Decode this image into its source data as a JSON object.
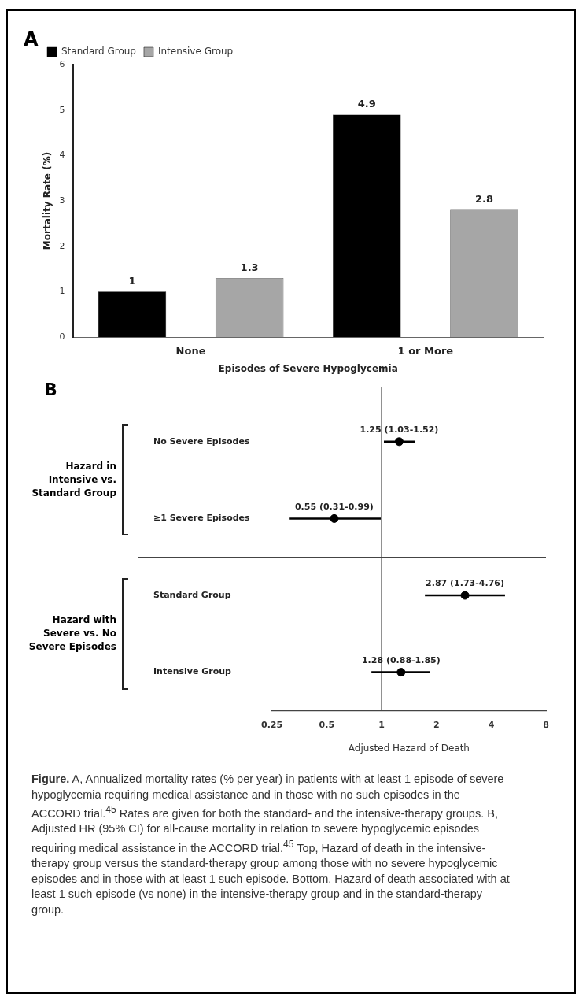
{
  "chart_data": [
    {
      "type": "bar",
      "categories": [
        "None",
        "1 or More"
      ],
      "xlabel": "Episodes of Severe Hypoglycemia",
      "ylabel": "Mortality Rate (%)",
      "series": [
        {
          "name": "Standard Group",
          "color": "#000000",
          "values": [
            1,
            4.9
          ]
        },
        {
          "name": "Intensive Group",
          "color": "#a6a6a6",
          "values": [
            1.3,
            2.8
          ]
        }
      ],
      "ylim": [
        0,
        6
      ],
      "yticks": [
        0,
        1,
        2,
        3,
        4,
        5,
        6
      ],
      "data_labels": true,
      "legend": "top left",
      "grid": false,
      "annotations": [
        "A"
      ]
    },
    {
      "type": "scatter",
      "orientation": "horizontal",
      "categories": [
        "No Severe Episodes",
        "≥1 Severe Episodes",
        "Standard Group",
        "Intensive Group"
      ],
      "values": [
        1.25,
        0.55,
        2.87,
        1.28
      ],
      "errors": [
        [
          1.03,
          1.52
        ],
        [
          0.31,
          0.99
        ],
        [
          1.73,
          4.76
        ],
        [
          0.88,
          1.85
        ]
      ],
      "value_labels": [
        "1.25 (1.03-1.52)",
        "0.55 (0.31-0.99)",
        "2.87 (1.73-4.76)",
        "1.28 (0.88-1.85)"
      ],
      "color": "#000000",
      "marker": "circle",
      "log": "x",
      "xlim": [
        0.25,
        8
      ],
      "xticks": [
        0.25,
        0.5,
        1,
        2,
        4,
        8
      ],
      "xlabel": "Adjusted Hazard of Death",
      "grid": false,
      "ref_lines": [
        {
          "axis": "x",
          "value": 1,
          "label": null
        }
      ],
      "annotations": [
        "B",
        "Hazard in Intensive vs. Standard Group",
        "Hazard with Severe vs. No Severe Episodes",
        "Figure.",
        " A, Annualized mortality rates (% per year) in patients with at least 1 episode of severe hypoglycemia requiring medical assistance and in those with no such episodes in the ACCORD trial.$^{45}$ Rates are given for both the standard- and the intensive-therapy groups. B, Adjusted HR (95% CI) for all-cause mortality in relation to severe hypoglycemic episodes requiring medical assistance in the ACCORD trial.$^{45}$ Top, Hazard of death in the intensive-therapy group versus the standard-therapy group among those with no severe hypoglycemic episodes and in those with at least 1 such episode. Bottom, Hazard of death associated with at least 1 such episode (vs none) in the intensive-therapy group and in the standard-therapy group."
      ]
    }
  ]
}
